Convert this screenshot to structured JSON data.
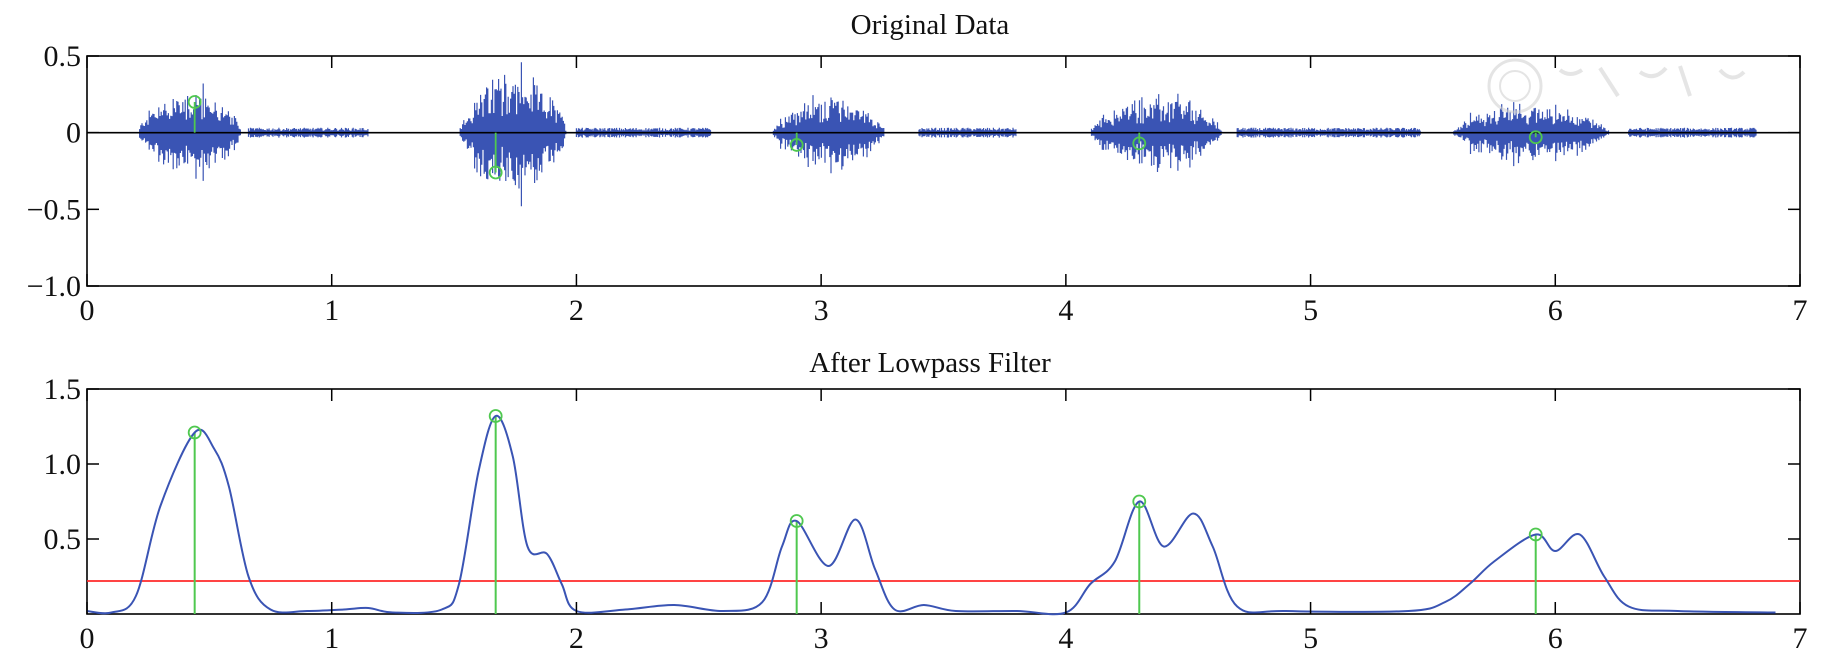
{
  "chart_data": [
    {
      "type": "line",
      "title": "Original Data",
      "xlim": [
        0,
        7
      ],
      "ylim": [
        -1.0,
        0.5
      ],
      "x_ticks": [
        "0",
        "1",
        "2",
        "3",
        "4",
        "5",
        "6",
        "7"
      ],
      "y_ticks": [
        "0.5",
        "0",
        "−0.5",
        "−1.0"
      ],
      "grid": false,
      "segments": [
        {
          "start": 0.21,
          "end": 0.63,
          "amp": 0.32
        },
        {
          "start": 1.52,
          "end": 1.96,
          "amp": 0.42
        },
        {
          "start": 2.8,
          "end": 3.26,
          "amp": 0.28
        },
        {
          "start": 4.1,
          "end": 4.64,
          "amp": 0.26
        },
        {
          "start": 5.58,
          "end": 6.22,
          "amp": 0.22
        }
      ],
      "markers": [
        {
          "x": 0.44,
          "y": 0.2
        },
        {
          "x": 1.67,
          "y": -0.26
        },
        {
          "x": 2.9,
          "y": -0.08
        },
        {
          "x": 4.3,
          "y": -0.07
        },
        {
          "x": 5.92,
          "y": -0.03
        }
      ],
      "colors": {
        "signal": "#3a54b4",
        "marker": "#4fc84f",
        "zero_line": "#000000"
      }
    },
    {
      "type": "line",
      "title": "After Lowpass Filter",
      "xlim": [
        0,
        7
      ],
      "ylim": [
        0,
        1.5
      ],
      "x_ticks": [
        "0",
        "1",
        "2",
        "3",
        "4",
        "5",
        "6",
        "7"
      ],
      "y_ticks": [
        "1.5",
        "1.0",
        "0.5"
      ],
      "grid": false,
      "threshold": 0.22,
      "peaks": [
        {
          "x": 0.44,
          "y": 1.21
        },
        {
          "x": 1.67,
          "y": 1.32
        },
        {
          "x": 2.9,
          "y": 0.62
        },
        {
          "x": 4.3,
          "y": 0.75
        },
        {
          "x": 5.92,
          "y": 0.53
        }
      ],
      "envelope": [
        [
          0.0,
          0.02
        ],
        [
          0.1,
          0.01
        ],
        [
          0.2,
          0.12
        ],
        [
          0.3,
          0.72
        ],
        [
          0.44,
          1.21
        ],
        [
          0.52,
          1.1
        ],
        [
          0.58,
          0.85
        ],
        [
          0.66,
          0.25
        ],
        [
          0.75,
          0.03
        ],
        [
          0.9,
          0.02
        ],
        [
          1.05,
          0.03
        ],
        [
          1.15,
          0.04
        ],
        [
          1.25,
          0.01
        ],
        [
          1.45,
          0.03
        ],
        [
          1.52,
          0.2
        ],
        [
          1.6,
          0.95
        ],
        [
          1.67,
          1.32
        ],
        [
          1.74,
          1.05
        ],
        [
          1.8,
          0.45
        ],
        [
          1.88,
          0.4
        ],
        [
          1.94,
          0.2
        ],
        [
          2.0,
          0.02
        ],
        [
          2.2,
          0.03
        ],
        [
          2.4,
          0.06
        ],
        [
          2.6,
          0.02
        ],
        [
          2.76,
          0.08
        ],
        [
          2.84,
          0.45
        ],
        [
          2.9,
          0.62
        ],
        [
          3.03,
          0.32
        ],
        [
          3.14,
          0.63
        ],
        [
          3.22,
          0.3
        ],
        [
          3.3,
          0.03
        ],
        [
          3.42,
          0.06
        ],
        [
          3.55,
          0.02
        ],
        [
          3.8,
          0.02
        ],
        [
          4.0,
          0.01
        ],
        [
          4.1,
          0.2
        ],
        [
          4.2,
          0.35
        ],
        [
          4.3,
          0.75
        ],
        [
          4.4,
          0.45
        ],
        [
          4.52,
          0.67
        ],
        [
          4.6,
          0.45
        ],
        [
          4.7,
          0.05
        ],
        [
          4.9,
          0.02
        ],
        [
          5.4,
          0.02
        ],
        [
          5.55,
          0.08
        ],
        [
          5.65,
          0.2
        ],
        [
          5.75,
          0.35
        ],
        [
          5.92,
          0.53
        ],
        [
          6.0,
          0.42
        ],
        [
          6.1,
          0.53
        ],
        [
          6.2,
          0.25
        ],
        [
          6.3,
          0.05
        ],
        [
          6.5,
          0.02
        ],
        [
          6.9,
          0.01
        ]
      ],
      "colors": {
        "signal": "#3a54b4",
        "threshold": "#ff2a2a",
        "marker": "#4fc84f"
      }
    }
  ]
}
